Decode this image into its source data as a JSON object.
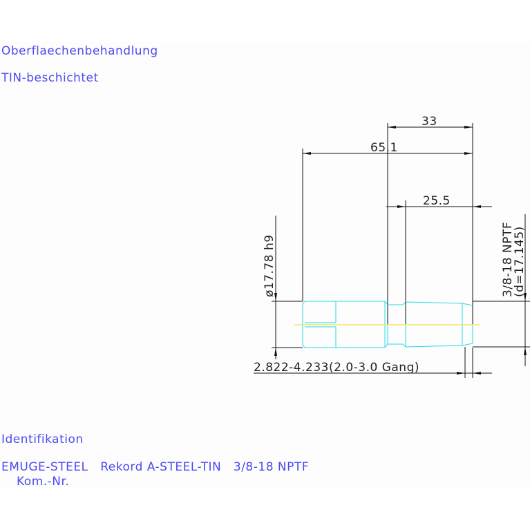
{
  "notes": {
    "surface_label": "Oberflaechenbehandlung",
    "surface_value": "TIN-beschichtet",
    "ident_label": "Identifikation",
    "ident_value": "EMUGE-STEEL   Rekord A-STEEL-TIN   3/8-18 NPTF",
    "kom_label": "Kom.-Nr."
  },
  "dimensions": {
    "shank_length": "33",
    "total_length": "65.1",
    "thread_length": "25.5",
    "shank_diameter": "ø17.78 h9",
    "thread_spec": "3/8-18 NPTF",
    "thread_diameter": "(d=17.145)",
    "chamfer": "2.822-4.233(2.0-3.0 Gang)"
  },
  "colors": {
    "text": "#4b4bf0",
    "part_outline": "#22dbe8",
    "centerline": "#f3e36a",
    "dimension": "#111111"
  }
}
